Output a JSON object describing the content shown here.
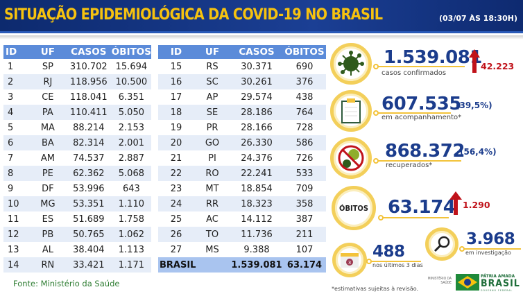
{
  "header": {
    "title": "SITUAÇÃO EPIDEMIOLÓGICA DA COVID-19 NO BRASIL",
    "date": "(03/07 ÀS 18:30H)"
  },
  "columns": [
    "ID",
    "UF",
    "CASOS",
    "ÓBITOS"
  ],
  "rows_left": [
    [
      "1",
      "SP",
      "310.702",
      "15.694"
    ],
    [
      "2",
      "RJ",
      "118.956",
      "10.500"
    ],
    [
      "3",
      "CE",
      "118.041",
      "6.351"
    ],
    [
      "4",
      "PA",
      "110.411",
      "5.050"
    ],
    [
      "5",
      "MA",
      "88.214",
      "2.153"
    ],
    [
      "6",
      "BA",
      "82.314",
      "2.001"
    ],
    [
      "7",
      "AM",
      "74.537",
      "2.887"
    ],
    [
      "8",
      "PE",
      "62.362",
      "5.068"
    ],
    [
      "9",
      "DF",
      "53.996",
      "643"
    ],
    [
      "10",
      "MG",
      "53.351",
      "1.110"
    ],
    [
      "11",
      "ES",
      "51.689",
      "1.758"
    ],
    [
      "12",
      "PB",
      "50.765",
      "1.062"
    ],
    [
      "13",
      "AL",
      "38.404",
      "1.113"
    ],
    [
      "14",
      "RN",
      "33.421",
      "1.171"
    ]
  ],
  "rows_right": [
    [
      "15",
      "RS",
      "30.371",
      "690"
    ],
    [
      "16",
      "SC",
      "30.261",
      "376"
    ],
    [
      "17",
      "AP",
      "29.574",
      "438"
    ],
    [
      "18",
      "SE",
      "28.186",
      "764"
    ],
    [
      "19",
      "PR",
      "28.166",
      "728"
    ],
    [
      "20",
      "GO",
      "26.330",
      "586"
    ],
    [
      "21",
      "PI",
      "24.376",
      "726"
    ],
    [
      "22",
      "RO",
      "22.241",
      "533"
    ],
    [
      "23",
      "MT",
      "18.854",
      "709"
    ],
    [
      "24",
      "RR",
      "18.323",
      "358"
    ],
    [
      "25",
      "AC",
      "14.112",
      "387"
    ],
    [
      "26",
      "TO",
      "11.736",
      "211"
    ],
    [
      "27",
      "MS",
      "9.388",
      "107"
    ]
  ],
  "total": {
    "label": "BRASIL",
    "casos": "1.539.081",
    "obitos": "63.174"
  },
  "source": "Fonte: Ministério da Saúde",
  "stats": {
    "confirmed": {
      "value": "1.539.081",
      "label": "casos confirmados",
      "increase": "42.223"
    },
    "monitoring": {
      "value": "607.535",
      "pct": "(39,5%)",
      "label": "em acompanhamento*"
    },
    "recovered": {
      "value": "868.372",
      "pct": "(56,4%)",
      "label": "recuperados*"
    },
    "deaths": {
      "badge": "ÓBITOS",
      "value": "63.174",
      "increase": "1.290"
    },
    "investigation": {
      "value": "3.968",
      "label": "em investigação"
    },
    "last3": {
      "value": "488",
      "label": "nos últimos 3 dias",
      "calendar_day": "3"
    }
  },
  "footnote": "*estimativas sujeitas à revisão.",
  "logos": {
    "ministry": "MINISTÉRIO DA SAÚDE",
    "brand": "PÁTRIA AMADA",
    "brand_big": "BRASIL",
    "gov": "GOVERNO FEDERAL"
  },
  "colors": {
    "header_bg": "#0d2a6e",
    "title": "#f6c20f",
    "table_header": "#5b8bd9",
    "stripe": "#e6edf8",
    "total_row": "#a9c4ef",
    "number": "#1b3c8c",
    "increase": "#c0121a",
    "ring": "#f3cf5a"
  }
}
